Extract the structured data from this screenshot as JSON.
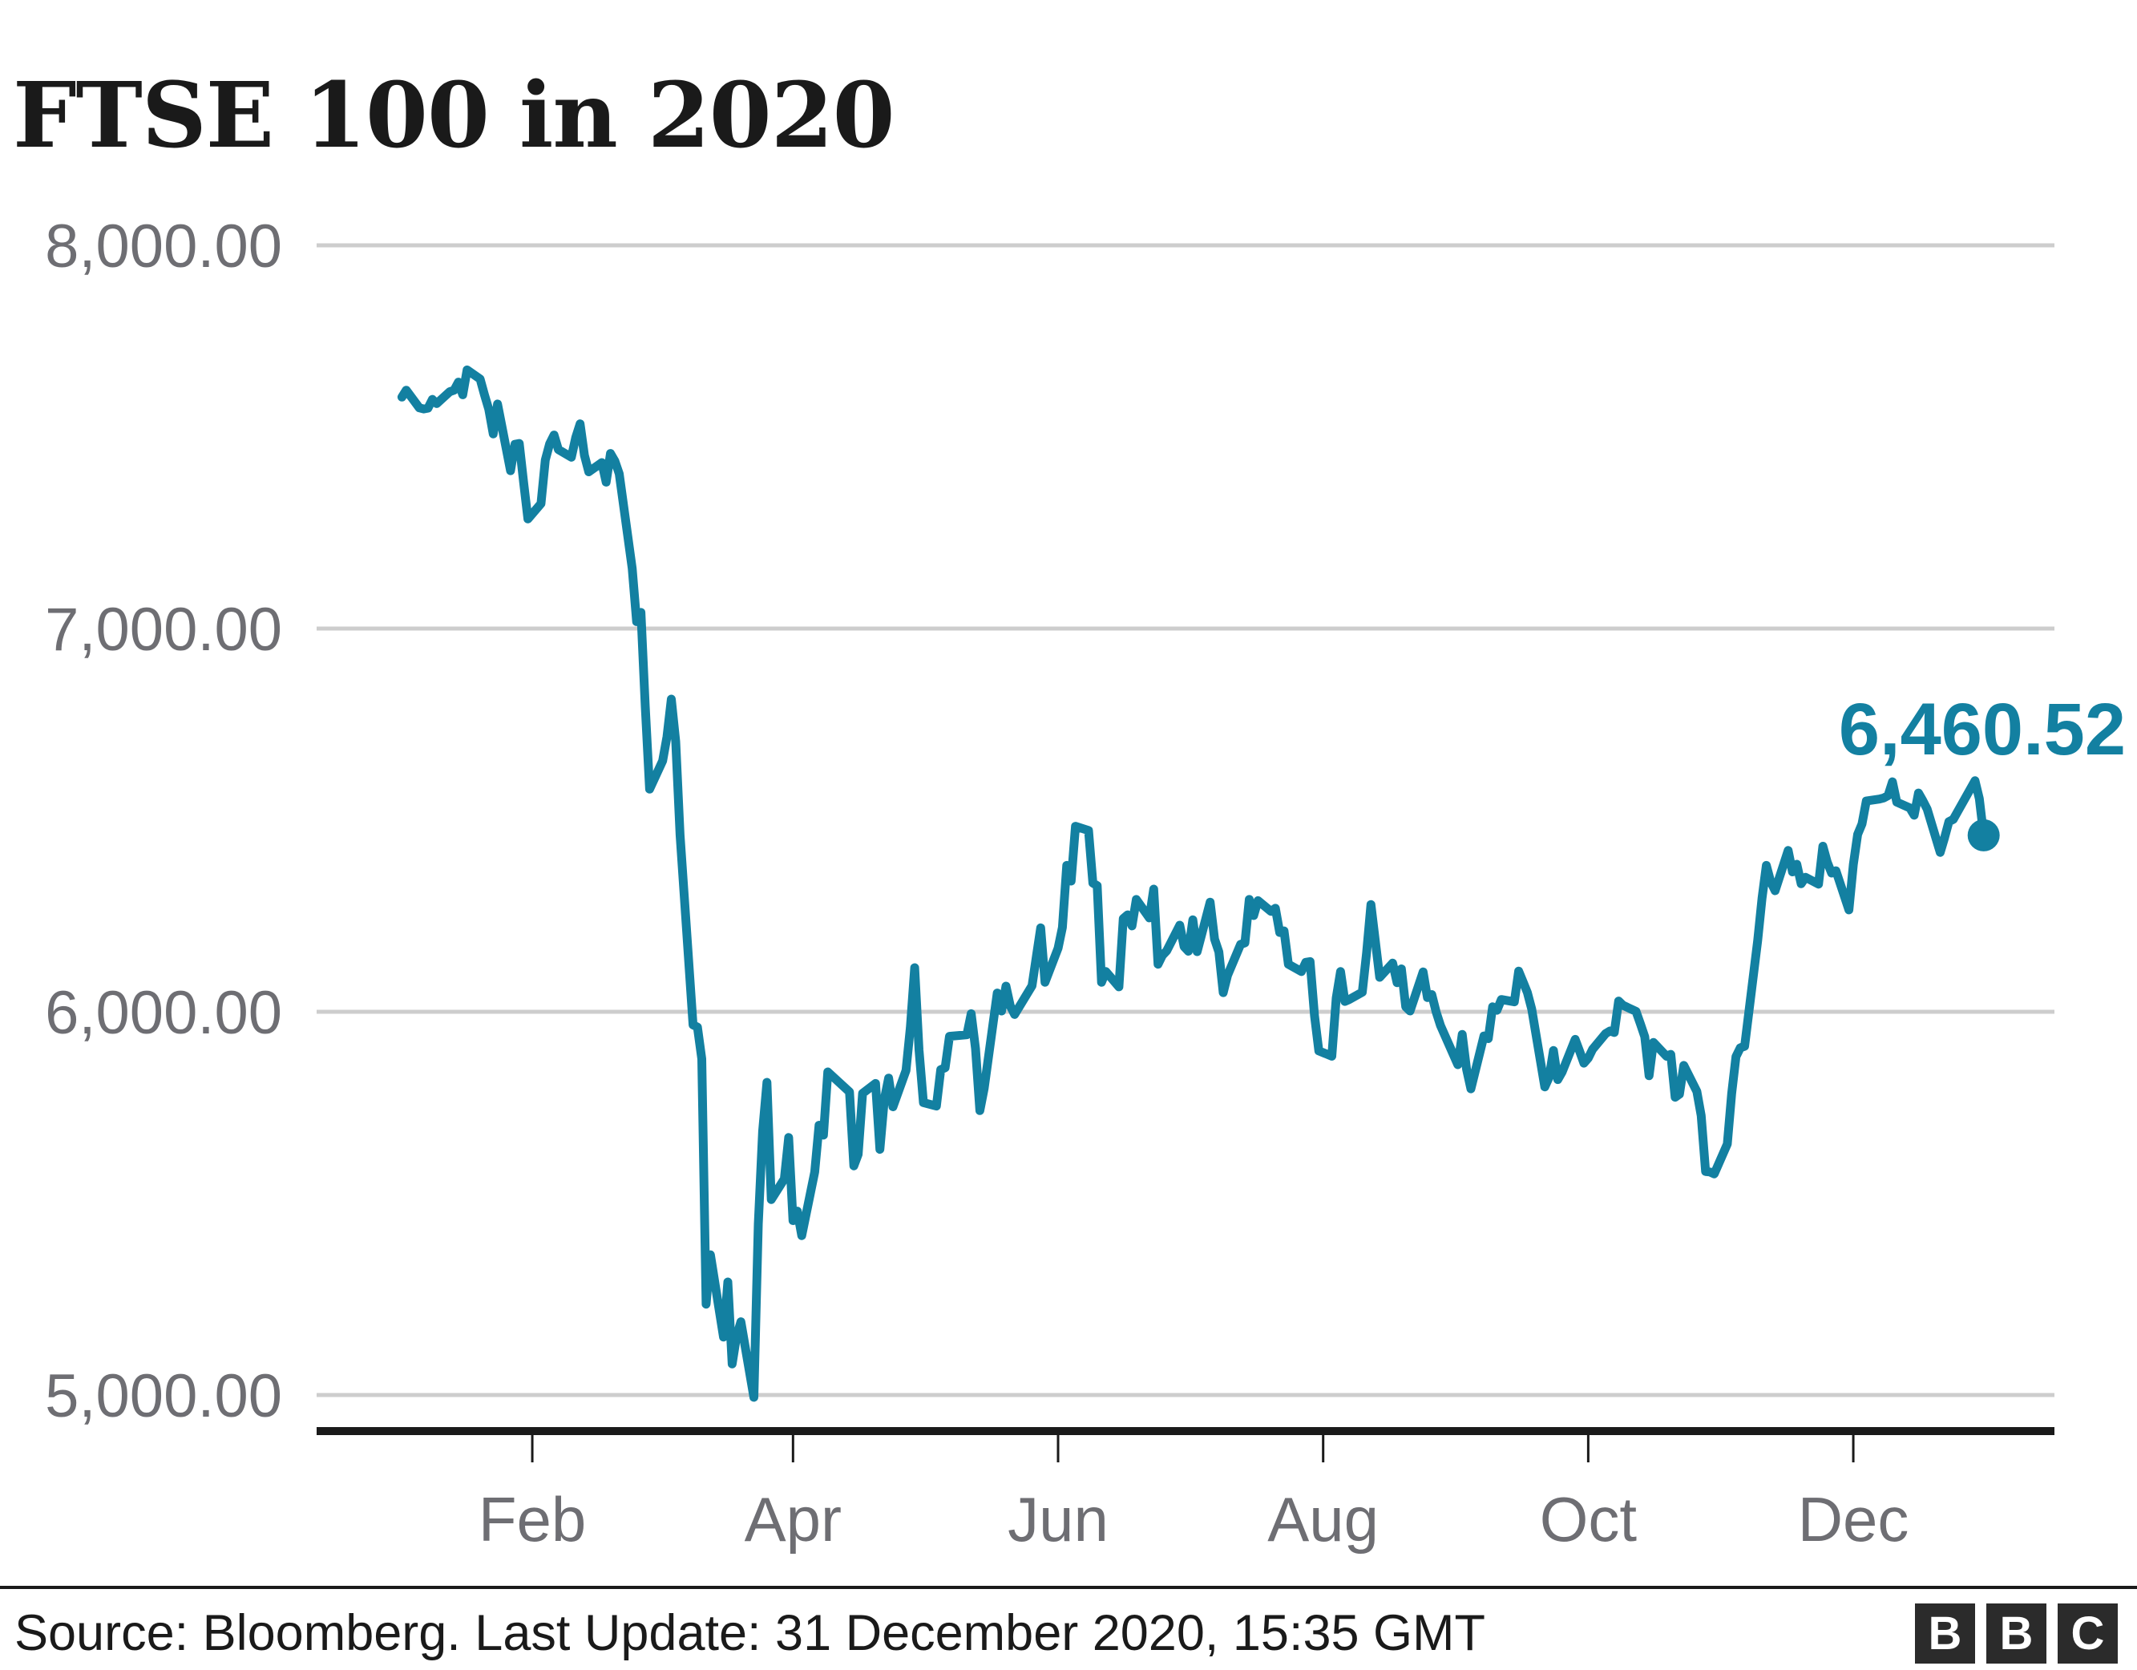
{
  "title": "FTSE 100 in 2020",
  "colors": {
    "line": "#1380A1",
    "grid": "#CDCDCD",
    "axis_label": "#6E6E73",
    "text": "#1A1A1A",
    "logo_bg": "#2B2B2B",
    "logo_fg": "#FFFFFF",
    "background": "#FFFFFF"
  },
  "footer": {
    "source": "Source: Bloomberg. Last Update: 31 December 2020, 15:35 GMT",
    "logo_letters": [
      "B",
      "B",
      "C"
    ]
  },
  "chart_data": {
    "type": "line",
    "title": "FTSE 100 in 2020",
    "series_name": "FTSE 100",
    "xlabel": "",
    "ylabel": "",
    "grid": "horizontal",
    "legend": "none",
    "ylim": [
      5000,
      8000
    ],
    "x_origin": "2020-01-01",
    "end_label": "6,460.52",
    "end_value": 6460.52,
    "end_date": "2020-12-31",
    "y_ticks": [
      {
        "value": 8000,
        "label": "8,000.00"
      },
      {
        "value": 7000,
        "label": "7,000.00"
      },
      {
        "value": 6000,
        "label": "6,000.00"
      },
      {
        "value": 5000,
        "label": "5,000.00"
      }
    ],
    "x_ticks": [
      {
        "label": "Feb",
        "date": "2020-02-01"
      },
      {
        "label": "Apr",
        "date": "2020-04-01"
      },
      {
        "label": "Jun",
        "date": "2020-06-01"
      },
      {
        "label": "Aug",
        "date": "2020-08-01"
      },
      {
        "label": "Oct",
        "date": "2020-10-01"
      },
      {
        "label": "Dec",
        "date": "2020-12-01"
      }
    ],
    "points": [
      [
        "2020-01-02",
        7604
      ],
      [
        "2020-01-03",
        7622
      ],
      [
        "2020-01-06",
        7576
      ],
      [
        "2020-01-07",
        7573
      ],
      [
        "2020-01-08",
        7575
      ],
      [
        "2020-01-09",
        7598
      ],
      [
        "2020-01-10",
        7587
      ],
      [
        "2020-01-13",
        7618
      ],
      [
        "2020-01-14",
        7622
      ],
      [
        "2020-01-15",
        7643
      ],
      [
        "2020-01-16",
        7610
      ],
      [
        "2020-01-17",
        7675
      ],
      [
        "2020-01-20",
        7651
      ],
      [
        "2020-01-21",
        7610
      ],
      [
        "2020-01-22",
        7572
      ],
      [
        "2020-01-23",
        7508
      ],
      [
        "2020-01-24",
        7586
      ],
      [
        "2020-01-27",
        7412
      ],
      [
        "2020-01-28",
        7481
      ],
      [
        "2020-01-29",
        7483
      ],
      [
        "2020-01-30",
        7382
      ],
      [
        "2020-01-31",
        7286
      ],
      [
        "2020-02-03",
        7326
      ],
      [
        "2020-02-04",
        7440
      ],
      [
        "2020-02-05",
        7482
      ],
      [
        "2020-02-06",
        7505
      ],
      [
        "2020-02-07",
        7467
      ],
      [
        "2020-02-10",
        7447
      ],
      [
        "2020-02-11",
        7499
      ],
      [
        "2020-02-12",
        7534
      ],
      [
        "2020-02-13",
        7452
      ],
      [
        "2020-02-14",
        7409
      ],
      [
        "2020-02-17",
        7433
      ],
      [
        "2020-02-18",
        7382
      ],
      [
        "2020-02-19",
        7457
      ],
      [
        "2020-02-20",
        7437
      ],
      [
        "2020-02-21",
        7404
      ],
      [
        "2020-02-24",
        7157
      ],
      [
        "2020-02-25",
        7018
      ],
      [
        "2020-02-26",
        7042
      ],
      [
        "2020-02-27",
        6796
      ],
      [
        "2020-02-28",
        6581
      ],
      [
        "2020-03-02",
        6655
      ],
      [
        "2020-03-03",
        6718
      ],
      [
        "2020-03-04",
        6816
      ],
      [
        "2020-03-05",
        6705
      ],
      [
        "2020-03-06",
        6462
      ],
      [
        "2020-03-09",
        5966
      ],
      [
        "2020-03-10",
        5960
      ],
      [
        "2020-03-11",
        5877
      ],
      [
        "2020-03-12",
        5237
      ],
      [
        "2020-03-13",
        5366
      ],
      [
        "2020-03-16",
        5151
      ],
      [
        "2020-03-17",
        5295
      ],
      [
        "2020-03-18",
        5081
      ],
      [
        "2020-03-19",
        5152
      ],
      [
        "2020-03-20",
        5191
      ],
      [
        "2020-03-23",
        4994
      ],
      [
        "2020-03-24",
        5446
      ],
      [
        "2020-03-25",
        5688
      ],
      [
        "2020-03-26",
        5816
      ],
      [
        "2020-03-27",
        5510
      ],
      [
        "2020-03-30",
        5564
      ],
      [
        "2020-03-31",
        5672
      ],
      [
        "2020-04-01",
        5455
      ],
      [
        "2020-04-02",
        5480
      ],
      [
        "2020-04-03",
        5416
      ],
      [
        "2020-04-06",
        5582
      ],
      [
        "2020-04-07",
        5704
      ],
      [
        "2020-04-08",
        5678
      ],
      [
        "2020-04-09",
        5843
      ],
      [
        "2020-04-14",
        5791
      ],
      [
        "2020-04-15",
        5598
      ],
      [
        "2020-04-16",
        5628
      ],
      [
        "2020-04-17",
        5787
      ],
      [
        "2020-04-20",
        5813
      ],
      [
        "2020-04-21",
        5641
      ],
      [
        "2020-04-22",
        5771
      ],
      [
        "2020-04-23",
        5827
      ],
      [
        "2020-04-24",
        5752
      ],
      [
        "2020-04-27",
        5847
      ],
      [
        "2020-04-28",
        5959
      ],
      [
        "2020-04-29",
        6115
      ],
      [
        "2020-04-30",
        5901
      ],
      [
        "2020-05-01",
        5763
      ],
      [
        "2020-05-04",
        5754
      ],
      [
        "2020-05-05",
        5849
      ],
      [
        "2020-05-06",
        5854
      ],
      [
        "2020-05-07",
        5936
      ],
      [
        "2020-05-11",
        5940
      ],
      [
        "2020-05-12",
        5995
      ],
      [
        "2020-05-13",
        5904
      ],
      [
        "2020-05-14",
        5742
      ],
      [
        "2020-05-15",
        5800
      ],
      [
        "2020-05-18",
        6049
      ],
      [
        "2020-05-19",
        6002
      ],
      [
        "2020-05-20",
        6067
      ],
      [
        "2020-05-21",
        6015
      ],
      [
        "2020-05-22",
        5993
      ],
      [
        "2020-05-26",
        6068
      ],
      [
        "2020-05-27",
        6144
      ],
      [
        "2020-05-28",
        6219
      ],
      [
        "2020-05-29",
        6077
      ],
      [
        "2020-06-01",
        6166
      ],
      [
        "2020-06-02",
        6220
      ],
      [
        "2020-06-03",
        6382
      ],
      [
        "2020-06-04",
        6341
      ],
      [
        "2020-06-05",
        6484
      ],
      [
        "2020-06-08",
        6473
      ],
      [
        "2020-06-09",
        6336
      ],
      [
        "2020-06-10",
        6329
      ],
      [
        "2020-06-11",
        6077
      ],
      [
        "2020-06-12",
        6105
      ],
      [
        "2020-06-15",
        6065
      ],
      [
        "2020-06-16",
        6243
      ],
      [
        "2020-06-17",
        6253
      ],
      [
        "2020-06-18",
        6224
      ],
      [
        "2020-06-19",
        6293
      ],
      [
        "2020-06-22",
        6245
      ],
      [
        "2020-06-23",
        6320
      ],
      [
        "2020-06-24",
        6124
      ],
      [
        "2020-06-25",
        6147
      ],
      [
        "2020-06-26",
        6159
      ],
      [
        "2020-06-29",
        6226
      ],
      [
        "2020-06-30",
        6170
      ],
      [
        "2020-07-01",
        6158
      ],
      [
        "2020-07-02",
        6240
      ],
      [
        "2020-07-03",
        6157
      ],
      [
        "2020-07-06",
        6286
      ],
      [
        "2020-07-07",
        6190
      ],
      [
        "2020-07-08",
        6156
      ],
      [
        "2020-07-09",
        6050
      ],
      [
        "2020-07-10",
        6095
      ],
      [
        "2020-07-13",
        6176
      ],
      [
        "2020-07-14",
        6180
      ],
      [
        "2020-07-15",
        6293
      ],
      [
        "2020-07-16",
        6251
      ],
      [
        "2020-07-17",
        6290
      ],
      [
        "2020-07-20",
        6262
      ],
      [
        "2020-07-21",
        6270
      ],
      [
        "2020-07-22",
        6207
      ],
      [
        "2020-07-23",
        6211
      ],
      [
        "2020-07-24",
        6124
      ],
      [
        "2020-07-27",
        6105
      ],
      [
        "2020-07-28",
        6129
      ],
      [
        "2020-07-29",
        6131
      ],
      [
        "2020-07-30",
        5990
      ],
      [
        "2020-07-31",
        5898
      ],
      [
        "2020-08-03",
        5884
      ],
      [
        "2020-08-04",
        6036
      ],
      [
        "2020-08-05",
        6105
      ],
      [
        "2020-08-06",
        6027
      ],
      [
        "2020-08-07",
        6032
      ],
      [
        "2020-08-10",
        6051
      ],
      [
        "2020-08-11",
        6154
      ],
      [
        "2020-08-12",
        6280
      ],
      [
        "2020-08-13",
        6186
      ],
      [
        "2020-08-14",
        6090
      ],
      [
        "2020-08-17",
        6127
      ],
      [
        "2020-08-18",
        6076
      ],
      [
        "2020-08-19",
        6112
      ],
      [
        "2020-08-20",
        6013
      ],
      [
        "2020-08-21",
        6002
      ],
      [
        "2020-08-24",
        6104
      ],
      [
        "2020-08-25",
        6037
      ],
      [
        "2020-08-26",
        6045
      ],
      [
        "2020-08-27",
        6000
      ],
      [
        "2020-08-28",
        5964
      ],
      [
        "2020-09-01",
        5862
      ],
      [
        "2020-09-02",
        5941
      ],
      [
        "2020-09-03",
        5850
      ],
      [
        "2020-09-04",
        5799
      ],
      [
        "2020-09-07",
        5937
      ],
      [
        "2020-09-08",
        5930
      ],
      [
        "2020-09-09",
        6013
      ],
      [
        "2020-09-10",
        6004
      ],
      [
        "2020-09-11",
        6032
      ],
      [
        "2020-09-14",
        6026
      ],
      [
        "2020-09-15",
        6106
      ],
      [
        "2020-09-16",
        6078
      ],
      [
        "2020-09-17",
        6050
      ],
      [
        "2020-09-18",
        6007
      ],
      [
        "2020-09-21",
        5804
      ],
      [
        "2020-09-22",
        5829
      ],
      [
        "2020-09-23",
        5899
      ],
      [
        "2020-09-24",
        5823
      ],
      [
        "2020-09-25",
        5843
      ],
      [
        "2020-09-28",
        5928
      ],
      [
        "2020-09-29",
        5898
      ],
      [
        "2020-09-30",
        5866
      ],
      [
        "2020-10-01",
        5879
      ],
      [
        "2020-10-02",
        5902
      ],
      [
        "2020-10-05",
        5943
      ],
      [
        "2020-10-06",
        5950
      ],
      [
        "2020-10-07",
        5946
      ],
      [
        "2020-10-08",
        6028
      ],
      [
        "2020-10-09",
        6017
      ],
      [
        "2020-10-12",
        6001
      ],
      [
        "2020-10-13",
        5969
      ],
      [
        "2020-10-14",
        5935
      ],
      [
        "2020-10-15",
        5833
      ],
      [
        "2020-10-16",
        5920
      ],
      [
        "2020-10-19",
        5884
      ],
      [
        "2020-10-20",
        5889
      ],
      [
        "2020-10-21",
        5777
      ],
      [
        "2020-10-22",
        5785
      ],
      [
        "2020-10-23",
        5860
      ],
      [
        "2020-10-26",
        5792
      ],
      [
        "2020-10-27",
        5729
      ],
      [
        "2020-10-28",
        5583
      ],
      [
        "2020-10-29",
        5582
      ],
      [
        "2020-10-30",
        5577
      ],
      [
        "2020-11-02",
        5655
      ],
      [
        "2020-11-03",
        5786
      ],
      [
        "2020-11-04",
        5883
      ],
      [
        "2020-11-05",
        5906
      ],
      [
        "2020-11-06",
        5910
      ],
      [
        "2020-11-09",
        6186
      ],
      [
        "2020-11-10",
        6296
      ],
      [
        "2020-11-11",
        6382
      ],
      [
        "2020-11-12",
        6339
      ],
      [
        "2020-11-13",
        6316
      ],
      [
        "2020-11-16",
        6421
      ],
      [
        "2020-11-17",
        6365
      ],
      [
        "2020-11-18",
        6385
      ],
      [
        "2020-11-19",
        6334
      ],
      [
        "2020-11-20",
        6351
      ],
      [
        "2020-11-23",
        6333
      ],
      [
        "2020-11-24",
        6432
      ],
      [
        "2020-11-25",
        6391
      ],
      [
        "2020-11-26",
        6362
      ],
      [
        "2020-11-27",
        6368
      ],
      [
        "2020-11-30",
        6266
      ],
      [
        "2020-12-01",
        6384
      ],
      [
        "2020-12-02",
        6463
      ],
      [
        "2020-12-03",
        6490
      ],
      [
        "2020-12-04",
        6550
      ],
      [
        "2020-12-07",
        6555
      ],
      [
        "2020-12-08",
        6558
      ],
      [
        "2020-12-09",
        6564
      ],
      [
        "2020-12-10",
        6600
      ],
      [
        "2020-12-11",
        6547
      ],
      [
        "2020-12-14",
        6532
      ],
      [
        "2020-12-15",
        6513
      ],
      [
        "2020-12-16",
        6571
      ],
      [
        "2020-12-17",
        6551
      ],
      [
        "2020-12-18",
        6529
      ],
      [
        "2020-12-21",
        6416
      ],
      [
        "2020-12-22",
        6454
      ],
      [
        "2020-12-23",
        6496
      ],
      [
        "2020-12-24",
        6502
      ],
      [
        "2020-12-29",
        6603
      ],
      [
        "2020-12-30",
        6556
      ],
      [
        "2020-12-31",
        6460.52
      ]
    ]
  }
}
